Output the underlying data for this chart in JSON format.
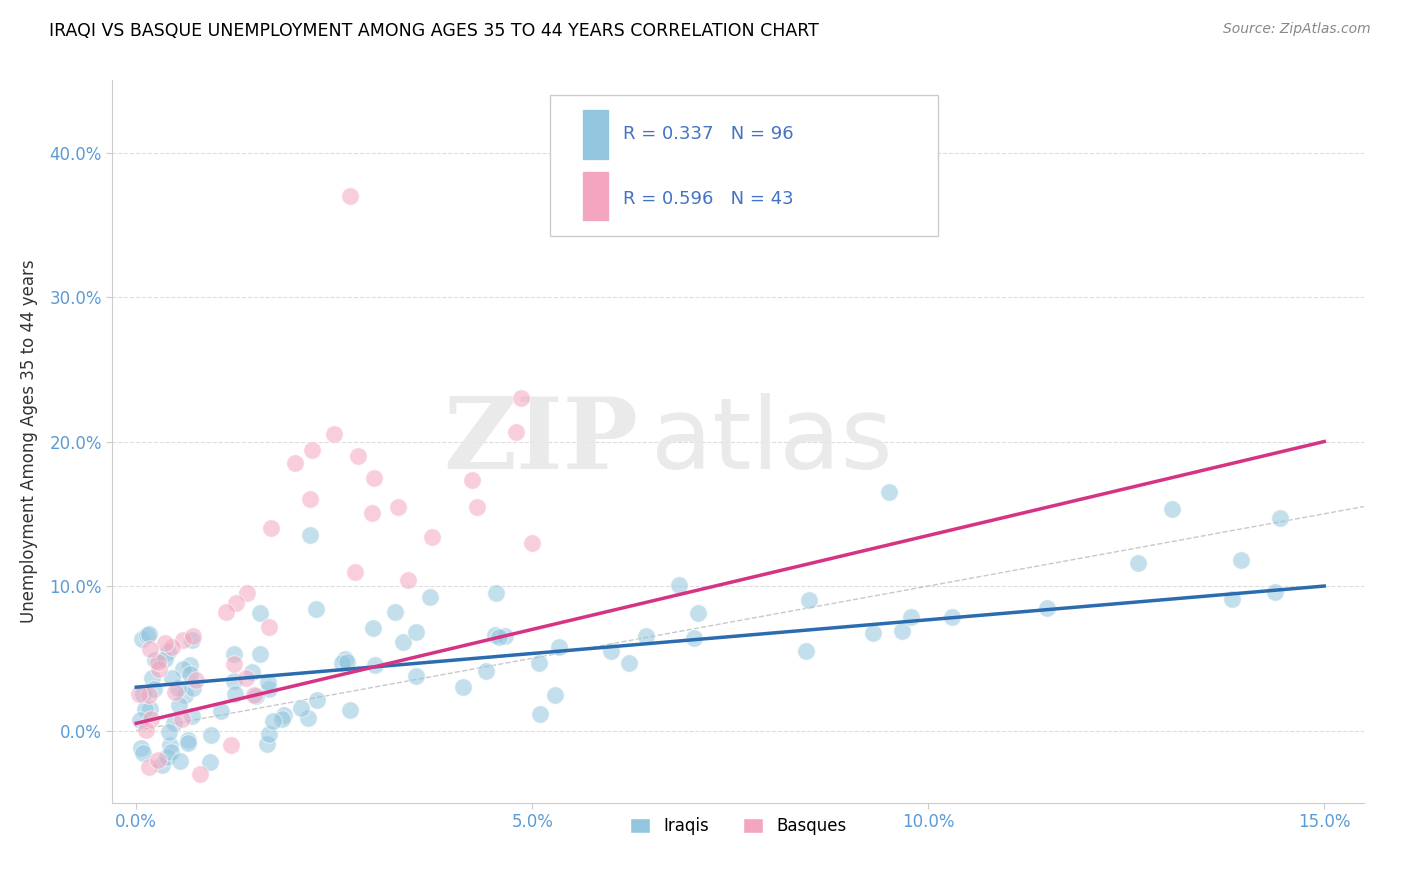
{
  "title": "IRAQI VS BASQUE UNEMPLOYMENT AMONG AGES 35 TO 44 YEARS CORRELATION CHART",
  "source": "Source: ZipAtlas.com",
  "ylabel": "Unemployment Among Ages 35 to 44 years",
  "xlim": [
    -0.003,
    0.155
  ],
  "ylim": [
    -0.05,
    0.45
  ],
  "xticks": [
    0.0,
    0.05,
    0.1,
    0.15
  ],
  "xticklabels": [
    "0.0%",
    "5.0%",
    "10.0%",
    "15.0%"
  ],
  "yticks": [
    0.0,
    0.1,
    0.2,
    0.3,
    0.4
  ],
  "yticklabels": [
    "0.0%",
    "10.0%",
    "20.0%",
    "30.0%",
    "40.0%"
  ],
  "iraqis_color": "#92c5de",
  "basques_color": "#f4a6c0",
  "iraqis_line_color": "#2b6cb0",
  "basques_line_color": "#d63384",
  "legend_text_color": "#4472c4",
  "iraqis_R": 0.337,
  "iraqis_N": 96,
  "basques_R": 0.596,
  "basques_N": 43,
  "watermark_zip": "ZIP",
  "watermark_atlas": "atlas",
  "tick_color": "#5b9bd5",
  "grid_color": "#dddddd",
  "diag_color": "#bbbbbb",
  "iraqis_seed": 77,
  "basques_seed": 42
}
